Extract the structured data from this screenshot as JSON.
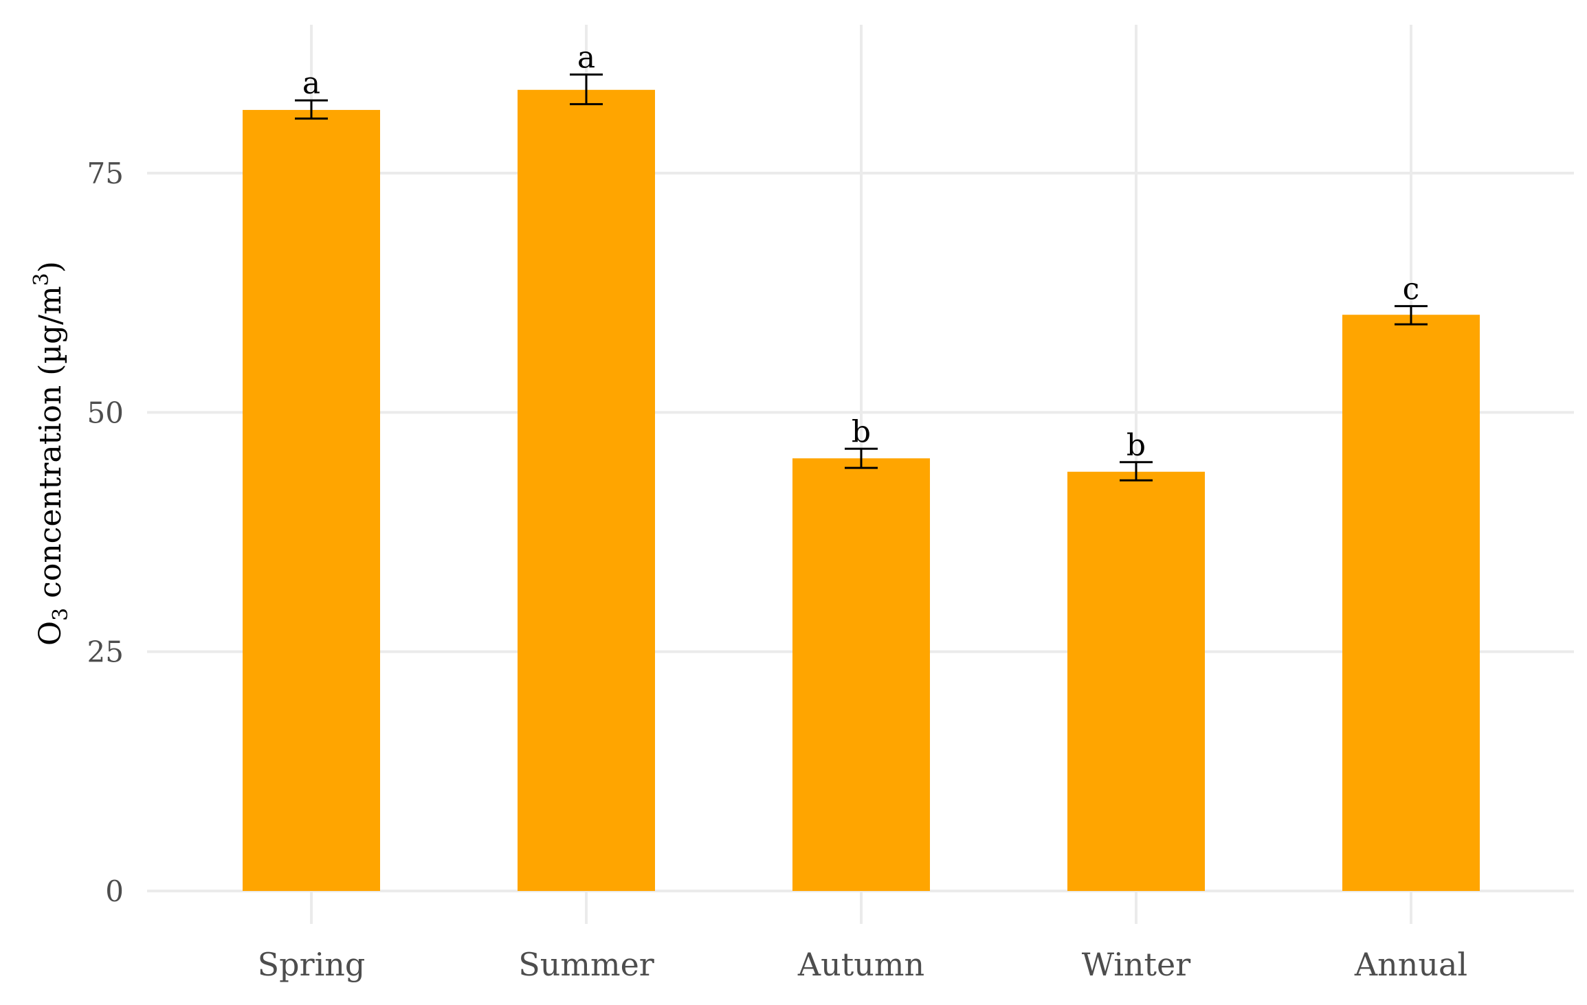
{
  "chart_data": {
    "type": "bar",
    "title": "",
    "xlabel": "",
    "ylabel": {
      "prefix": "O",
      "subscript": "3",
      "middle": " concentration (µg/m",
      "superscript": "3",
      "suffix": ")"
    },
    "categories": [
      "Spring",
      "Summer",
      "Autumn",
      "Winter",
      "Annual"
    ],
    "values": [
      81.6,
      83.7,
      45.2,
      43.8,
      60.2
    ],
    "error_low": [
      80.7,
      82.2,
      44.2,
      42.9,
      59.2
    ],
    "error_high": [
      82.6,
      85.3,
      46.2,
      44.8,
      61.1
    ],
    "significance_letters": [
      "a",
      "a",
      "b",
      "b",
      "c"
    ],
    "ylim": [
      0,
      90
    ],
    "yticks": [
      0,
      25,
      50,
      75
    ],
    "ytick_labels": [
      "0",
      "25",
      "50",
      "75"
    ],
    "grid": true,
    "legend": "none",
    "bar_color": "#FFA500",
    "grid_color": "#EBEBEB",
    "text_color": "#4D4D4D",
    "label_color": "#000000"
  }
}
